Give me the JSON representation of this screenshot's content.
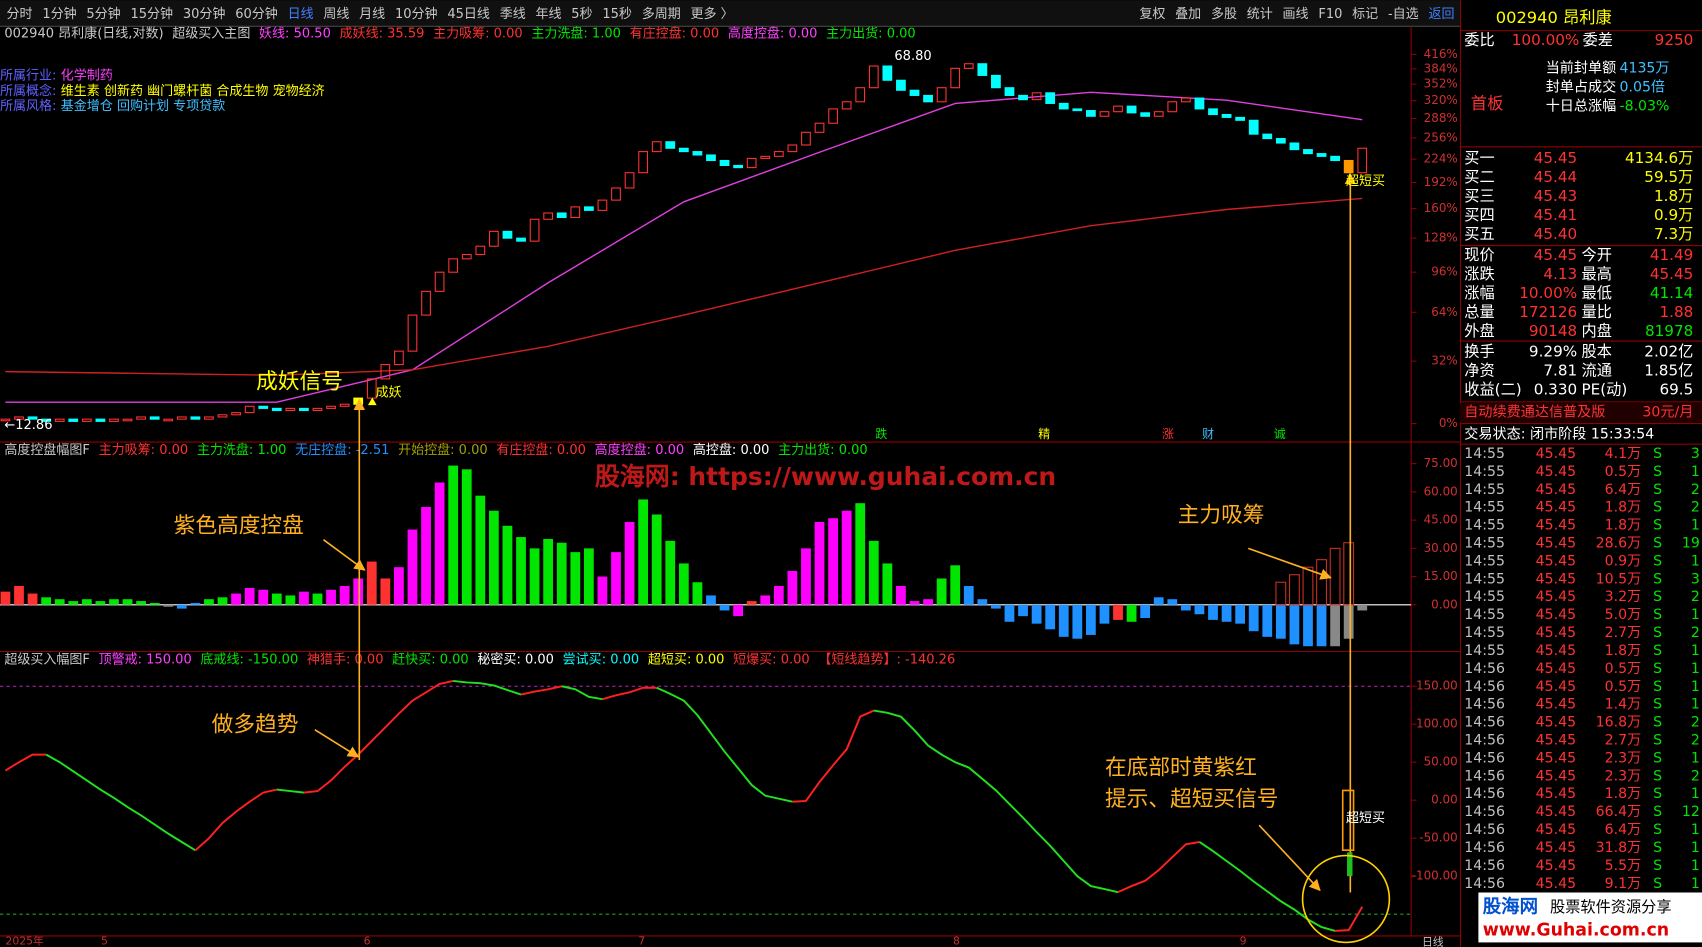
{
  "toolbar": {
    "left": [
      "分时",
      "1分钟",
      "5分钟",
      "15分钟",
      "30分钟",
      "60分钟",
      "日线",
      "周线",
      "月线",
      "10分钟",
      "45日线",
      "季线",
      "年线",
      "5秒",
      "15秒",
      "多周期",
      "更多 〉"
    ],
    "active": 6,
    "right": [
      "复权",
      "叠加",
      "多股",
      "统计",
      "画线",
      "F10",
      "标记",
      "-自选",
      "返回"
    ]
  },
  "main": {
    "symbol": "002940 昂利康(日线,对数)",
    "indicator": "超级买入主图",
    "items": [
      {
        "text": "妖线: 50.50",
        "color": "#ff40ff"
      },
      {
        "text": "成妖线: 35.59",
        "color": "#ff3232"
      },
      {
        "text": "主力吸筹: 0.00",
        "color": "#ff3232"
      },
      {
        "text": "主力洗盘: 1.00",
        "color": "#00e600"
      },
      {
        "text": "有庄控盘: 0.00",
        "color": "#ff3232"
      },
      {
        "text": "高度控盘: 0.00",
        "color": "#ff40ff"
      },
      {
        "text": "主力出货: 0.00",
        "color": "#00e600"
      }
    ],
    "info": [
      {
        "label": "所属行业:",
        "value": "化学制药",
        "color": "#ff40ff"
      },
      {
        "label": "所属概念:",
        "value": "维生素 创新药 幽门螺杆菌 合成生物 宠物经济",
        "color": "#ffff00"
      },
      {
        "label": "所属风格:",
        "value": "基金增仓 回购计划 专项贷款",
        "color": "#40c0ff"
      }
    ],
    "log": true,
    "ylim": [
      -8.3,
      468
    ],
    "yticks": [
      {
        "value": 0,
        "label": "0%"
      },
      {
        "value": 32,
        "label": "32%"
      },
      {
        "value": 64,
        "label": "64%"
      },
      {
        "value": 96,
        "label": "96%"
      },
      {
        "value": 128,
        "label": "128%"
      },
      {
        "value": 160,
        "label": "160%"
      },
      {
        "value": 192,
        "label": "192%"
      },
      {
        "value": 224,
        "label": "224%"
      },
      {
        "value": 256,
        "label": "256%"
      },
      {
        "value": 288,
        "label": "288%"
      },
      {
        "value": 320,
        "label": "320%"
      },
      {
        "value": 352,
        "label": "352%"
      },
      {
        "value": 384,
        "label": "384%"
      },
      {
        "value": 416,
        "label": "416%"
      }
    ],
    "closes": [
      2,
      3,
      2,
      1,
      2,
      1,
      2,
      1,
      2,
      2,
      3,
      2,
      2,
      3,
      2,
      3,
      4,
      5,
      8,
      7,
      6,
      7,
      6,
      7,
      8,
      9,
      12,
      22,
      30,
      38,
      62,
      80,
      96,
      108,
      112,
      120,
      135,
      128,
      125,
      148,
      155,
      150,
      162,
      158,
      170,
      185,
      205,
      235,
      250,
      240,
      235,
      230,
      222,
      215,
      212,
      225,
      228,
      235,
      245,
      265,
      280,
      305,
      318,
      345,
      390,
      360,
      340,
      330,
      318,
      345,
      385,
      395,
      370,
      345,
      330,
      322,
      335,
      315,
      305,
      302,
      292,
      300,
      310,
      298,
      292,
      300,
      318,
      325,
      305,
      295,
      290,
      285,
      262,
      255,
      248,
      238,
      232,
      228,
      222,
      205,
      240
    ],
    "signal_candles": [
      {
        "index": 26,
        "color": "#ffff00"
      },
      {
        "index": 99,
        "color": "#ff9900"
      }
    ],
    "up_color": "#ff3232",
    "down_color": "#00ffff",
    "ma_index": [
      0,
      10,
      20,
      30,
      40,
      50,
      60,
      70,
      80,
      90,
      100
    ],
    "lines": [
      {
        "color": "#e040e0",
        "values": [
          10,
          10,
          10,
          27,
          87,
          168,
          234,
          315,
          336,
          321,
          286
        ]
      },
      {
        "color": "#d02020",
        "values": [
          26,
          25,
          24,
          27,
          41,
          62,
          87,
          116,
          141,
          159,
          172
        ]
      }
    ],
    "high_label": "68.80",
    "low_label": "←12.86",
    "signal_text": "成妖信号",
    "signal_tag": "成妖",
    "buy_tag": "超短买",
    "markers": [
      {
        "text": "跌",
        "color": "#00e600"
      },
      {
        "text": "精",
        "color": "#ffff00"
      },
      {
        "text": "涨",
        "color": "#ff3232"
      },
      {
        "text": "财",
        "color": "#40c0ff"
      },
      {
        "text": "诚",
        "color": "#00e600"
      }
    ]
  },
  "panel2": {
    "name": "高度控盘幅图F",
    "items": [
      {
        "text": "主力吸筹: 0.00",
        "color": "#ff3232"
      },
      {
        "text": "主力洗盘: 1.00",
        "color": "#00e600"
      },
      {
        "text": "无庄控盘: -2.51",
        "color": "#1e90ff"
      },
      {
        "text": "开始控盘: 0.00",
        "color": "#a0a000"
      },
      {
        "text": "有庄控盘: 0.00",
        "color": "#ff3232"
      },
      {
        "text": "高度控盘: 0.00",
        "color": "#ff40ff"
      },
      {
        "text": "高控盘: 0.00",
        "color": "#ffffff"
      },
      {
        "text": "主力出货: 0.00",
        "color": "#00e600"
      }
    ],
    "ylim": [
      -24.8,
      86.5
    ],
    "yticks": [
      {
        "value": 0,
        "label": "0.00"
      },
      {
        "value": 15,
        "label": "15.00"
      },
      {
        "value": 30,
        "label": "30.00"
      },
      {
        "value": 45,
        "label": "45.00"
      },
      {
        "value": 60,
        "label": "60.00"
      },
      {
        "value": 75,
        "label": "75.00"
      }
    ],
    "values": [
      7,
      10,
      6,
      4,
      3,
      2,
      3,
      2,
      3,
      3,
      2,
      1,
      -1,
      -2,
      1,
      3,
      4,
      6,
      9,
      8,
      6,
      5,
      7,
      6,
      8,
      10,
      14,
      23,
      14,
      20,
      40,
      52,
      65,
      74,
      72,
      58,
      50,
      42,
      36,
      30,
      35,
      33,
      28,
      30,
      15,
      28,
      44,
      56,
      48,
      34,
      22,
      12,
      5,
      -3,
      -6,
      2,
      5,
      10,
      18,
      30,
      44,
      46,
      50,
      54,
      34,
      22,
      10,
      2,
      3,
      14,
      21,
      10,
      3,
      -2,
      -9,
      -6,
      -10,
      -13,
      -17,
      -18,
      -16,
      -10,
      -8,
      -9,
      -7,
      4,
      3,
      -3,
      -5,
      -8,
      -9,
      -10,
      -14,
      -17,
      -18,
      -21,
      -22,
      -22,
      -22,
      -18,
      -3
    ],
    "kinds": "rrrggggggggg bbggmmmggmgmmmrrmmmmgggggggggggmmmgggggbbmrmmmmmmmgggmmmggbbbbbbbbbbbrgbbbbbbbbbbbbbb",
    "palette": {
      "r": "#ff3232",
      "g": "#00e600",
      "m": "#ff00ff",
      "b": "#1e90ff"
    },
    "accum_index": [
      94,
      95,
      96,
      97,
      98,
      99
    ],
    "accum_values": [
      12,
      16,
      20,
      24,
      30,
      33
    ],
    "accum_color": "#c83020",
    "watermark": "股海网: https://www.guhai.com.cn",
    "note_purple": "紫色高度控盘",
    "note_accum": "主力吸筹"
  },
  "panel3": {
    "name": "超级买入幅图F",
    "items": [
      {
        "text": "顶警戒: 150.00",
        "color": "#ff40ff"
      },
      {
        "text": "底戒线: -150.00",
        "color": "#00e600"
      },
      {
        "text": "神猎手: 0.00",
        "color": "#ff3232"
      },
      {
        "text": "赶快买: 0.00",
        "color": "#00e600"
      },
      {
        "text": "秘密买: 0.00",
        "color": "#ffffff"
      },
      {
        "text": "尝试买: 0.00",
        "color": "#00ffff"
      },
      {
        "text": "超短买: 0.00",
        "color": "#ffff00"
      },
      {
        "text": "短爆买: 0.00",
        "color": "#ff3232"
      },
      {
        "text": "【短线趋势】: -140.26",
        "color": "#ff3232"
      }
    ],
    "ylim": [
      -178.6,
      195.7
    ],
    "yticks": [
      {
        "value": -100,
        "label": "-100.00"
      },
      {
        "value": -50,
        "label": "-50.00"
      },
      {
        "value": 0,
        "label": "0.00"
      },
      {
        "value": 50,
        "label": "50.00"
      },
      {
        "value": 100,
        "label": "100.00"
      },
      {
        "value": 150,
        "label": "150.00"
      }
    ],
    "guide_lines": [
      {
        "value": 150,
        "color": "#c020c0"
      },
      {
        "value": -150,
        "color": "#20a020"
      }
    ],
    "values": [
      39,
      50,
      60,
      60,
      50,
      38,
      26,
      14,
      3,
      -9,
      -20,
      -32,
      -44,
      -55,
      -66,
      -50,
      -30,
      -15,
      -2,
      10,
      14,
      12,
      10,
      12,
      26,
      44,
      60,
      78,
      96,
      114,
      131,
      142,
      153,
      157,
      155,
      154,
      151,
      145,
      139,
      143,
      146,
      150,
      146,
      136,
      133,
      138,
      142,
      148,
      148,
      140,
      131,
      112,
      88,
      64,
      42,
      20,
      6,
      2,
      -2,
      -1,
      24,
      46,
      67,
      110,
      118,
      115,
      110,
      92,
      72,
      60,
      50,
      43,
      28,
      13,
      -5,
      -23,
      -42,
      -60,
      -80,
      -100,
      -113,
      -117,
      -121,
      -113,
      -106,
      -92,
      -75,
      -58,
      -55,
      -67,
      -80,
      -93,
      -107,
      -120,
      -133,
      -144,
      -157,
      -167,
      -172,
      -171,
      -140.26
    ],
    "rise_color": "#ff2020",
    "fall_color": "#20e020",
    "note_trend": "做多趋势",
    "note_bottom1": "在底部时黄紫红",
    "note_bottom2": "提示、超短买信号",
    "buy_tag": "超短买",
    "dates": [
      "2025年",
      "5",
      "6",
      "7",
      "8",
      "9"
    ],
    "period": "日线"
  },
  "quote": {
    "title": "002940 昂利康",
    "wei": [
      "委比",
      "100.00%",
      "委差",
      "9250"
    ],
    "seal": [
      [
        "当前封单额",
        "4135万"
      ],
      [
        "封单占成交",
        "0.05倍"
      ],
      [
        "十日总涨幅",
        "-8.03%"
      ]
    ],
    "board": "首板",
    "bids": [
      [
        "买一",
        "45.45",
        "4134.6万"
      ],
      [
        "买二",
        "45.44",
        "59.5万"
      ],
      [
        "买三",
        "45.43",
        "1.8万"
      ],
      [
        "买四",
        "45.41",
        "0.9万"
      ],
      [
        "买五",
        "45.40",
        "7.3万"
      ]
    ],
    "stats": [
      {
        "cells": [
          "现价",
          "45.45",
          "今开",
          "41.49"
        ],
        "colors": [
          "#ff3232",
          "#ff3232"
        ]
      },
      {
        "cells": [
          "涨跌",
          "4.13",
          "最高",
          "45.45"
        ],
        "colors": [
          "#ff3232",
          "#ff3232"
        ]
      },
      {
        "cells": [
          "涨幅",
          "10.00%",
          "最低",
          "41.14"
        ],
        "colors": [
          "#ff3232",
          "#00e600"
        ]
      },
      {
        "cells": [
          "总量",
          "172126",
          "量比",
          "1.88"
        ],
        "colors": [
          "#ff3232",
          "#ff3232"
        ]
      },
      {
        "cells": [
          "外盘",
          "90148",
          "内盘",
          "81978"
        ],
        "colors": [
          "#ff3232",
          "#00e600"
        ]
      },
      {
        "cells": [
          "换手",
          "9.29%",
          "股本",
          "2.02亿"
        ],
        "colors": [
          "#ffffff",
          "#ffffff"
        ]
      },
      {
        "cells": [
          "净资",
          "7.81",
          "流通",
          "1.85亿"
        ],
        "colors": [
          "#ffffff",
          "#ffffff"
        ]
      },
      {
        "cells": [
          "收益(二)",
          "0.330",
          "PE(动)",
          "69.5"
        ],
        "colors": [
          "#ffffff",
          "#ffffff"
        ]
      }
    ],
    "ad": "自动续费通达信普及版",
    "ad_price": "30元/月",
    "status": "交易状态: 闭市阶段 15:33:54",
    "trades": [
      [
        "14:55",
        "45.45",
        "4.1万",
        "S",
        "3"
      ],
      [
        "14:55",
        "45.45",
        "0.5万",
        "S",
        "1"
      ],
      [
        "14:55",
        "45.45",
        "6.4万",
        "S",
        "2"
      ],
      [
        "14:55",
        "45.45",
        "1.8万",
        "S",
        "2"
      ],
      [
        "14:55",
        "45.45",
        "1.8万",
        "S",
        "1"
      ],
      [
        "14:55",
        "45.45",
        "28.6万",
        "S",
        "19"
      ],
      [
        "14:55",
        "45.45",
        "0.9万",
        "S",
        "1"
      ],
      [
        "14:55",
        "45.45",
        "10.5万",
        "S",
        "3"
      ],
      [
        "14:55",
        "45.45",
        "3.2万",
        "S",
        "2"
      ],
      [
        "14:55",
        "45.45",
        "5.0万",
        "S",
        "1"
      ],
      [
        "14:55",
        "45.45",
        "2.7万",
        "S",
        "2"
      ],
      [
        "14:55",
        "45.45",
        "1.8万",
        "S",
        "1"
      ],
      [
        "14:56",
        "45.45",
        "0.5万",
        "S",
        "1"
      ],
      [
        "14:56",
        "45.45",
        "0.5万",
        "S",
        "1"
      ],
      [
        "14:56",
        "45.45",
        "1.4万",
        "S",
        "1"
      ],
      [
        "14:56",
        "45.45",
        "16.8万",
        "S",
        "2"
      ],
      [
        "14:56",
        "45.45",
        "2.7万",
        "S",
        "2"
      ],
      [
        "14:56",
        "45.45",
        "2.3万",
        "S",
        "1"
      ],
      [
        "14:56",
        "45.45",
        "2.3万",
        "S",
        "2"
      ],
      [
        "14:56",
        "45.45",
        "1.8万",
        "S",
        "1"
      ],
      [
        "14:56",
        "45.45",
        "66.4万",
        "S",
        "12"
      ],
      [
        "14:56",
        "45.45",
        "6.4万",
        "S",
        "1"
      ],
      [
        "14:56",
        "45.45",
        "31.8万",
        "S",
        "1"
      ],
      [
        "14:56",
        "45.45",
        "5.5万",
        "S",
        "1"
      ],
      [
        "14:56",
        "45.45",
        "9.1万",
        "S",
        "1"
      ]
    ],
    "logo1": "股海网",
    "logo2": "股票软件资源分享",
    "logo3": "www.Guhai.com.cn"
  }
}
